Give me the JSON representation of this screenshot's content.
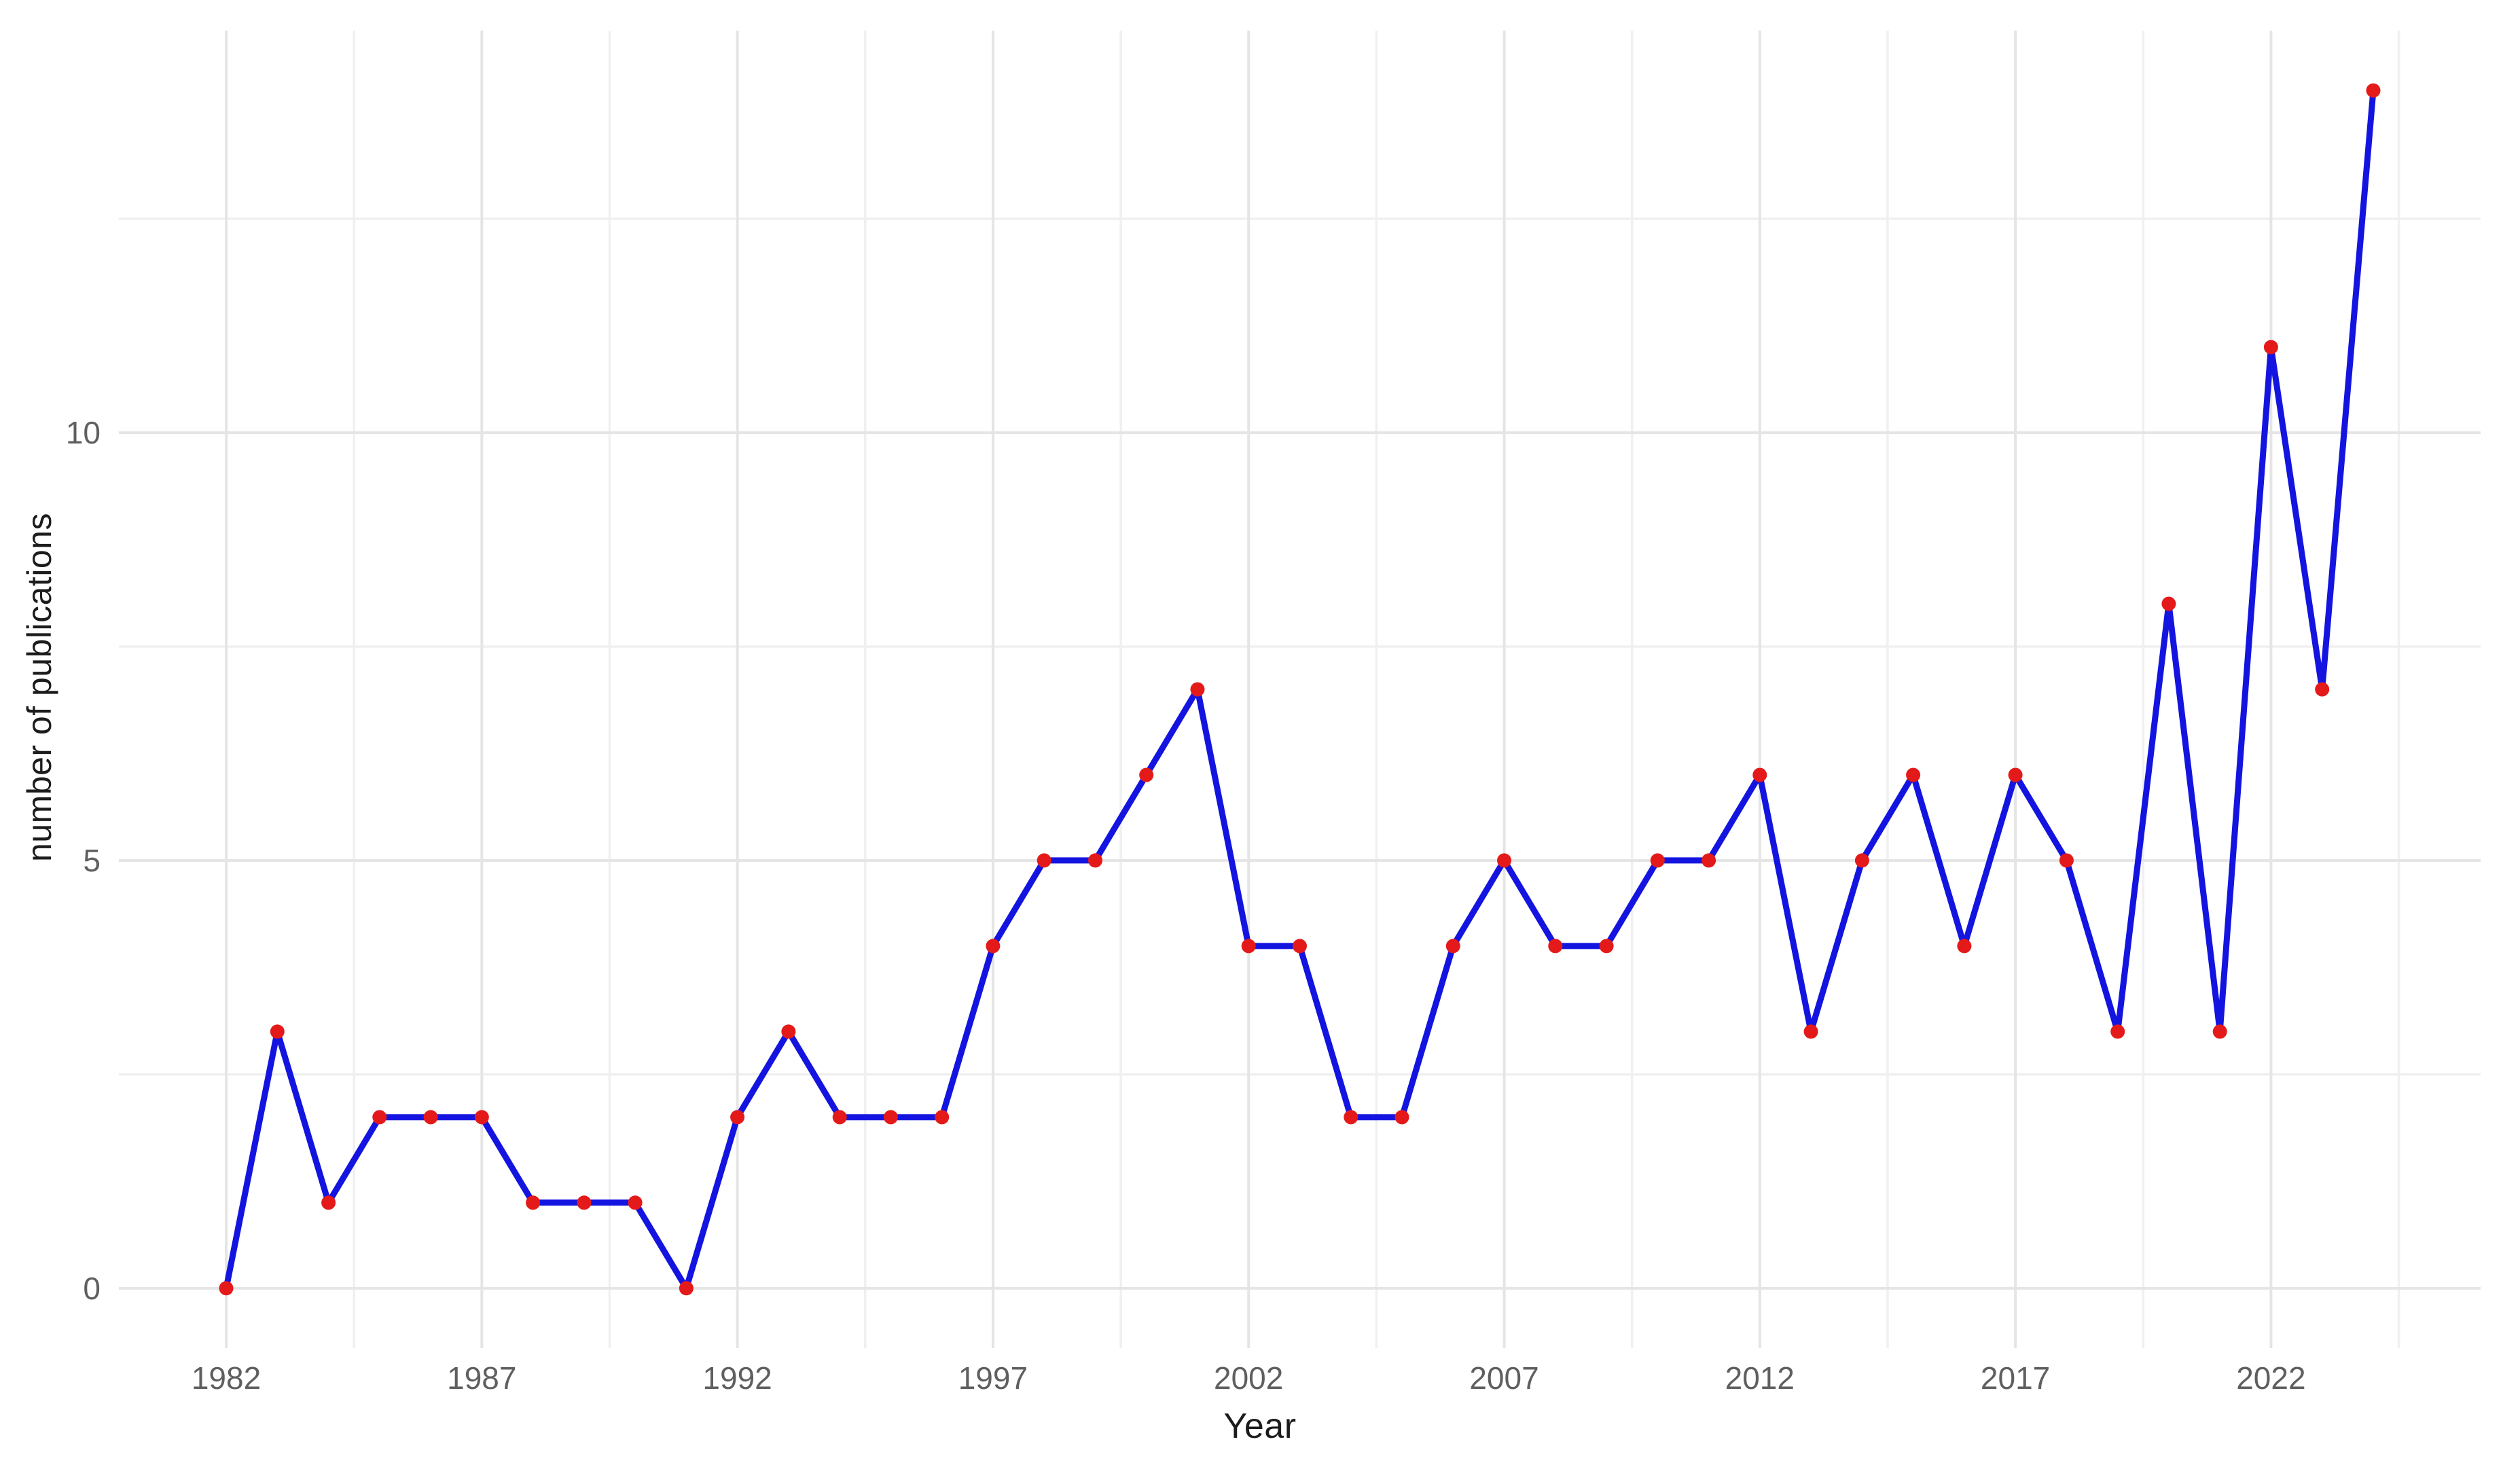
{
  "chart_data": {
    "type": "line",
    "title": "",
    "xlabel": "Year",
    "ylabel": "number of publications",
    "x": [
      1982,
      1983,
      1984,
      1985,
      1986,
      1987,
      1988,
      1989,
      1990,
      1991,
      1992,
      1993,
      1994,
      1995,
      1996,
      1997,
      1998,
      1999,
      2000,
      2001,
      2002,
      2003,
      2004,
      2005,
      2006,
      2007,
      2008,
      2009,
      2010,
      2011,
      2012,
      2013,
      2014,
      2015,
      2016,
      2017,
      2018,
      2019,
      2020,
      2021,
      2022,
      2023,
      2024
    ],
    "values": [
      0,
      3,
      1,
      2,
      2,
      2,
      1,
      1,
      1,
      0,
      2,
      3,
      2,
      2,
      2,
      4,
      5,
      5,
      6,
      7,
      4,
      4,
      2,
      2,
      4,
      5,
      4,
      4,
      5,
      5,
      6,
      3,
      5,
      6,
      4,
      6,
      5,
      3,
      8,
      3,
      11,
      7,
      14
    ],
    "x_tick_labels": [
      "1982",
      "1987",
      "1992",
      "1997",
      "2002",
      "2007",
      "2012",
      "2017",
      "2022"
    ],
    "x_tick_values": [
      1982,
      1987,
      1992,
      1997,
      2002,
      2007,
      2012,
      2017,
      2022
    ],
    "y_tick_labels": [
      "0",
      "5",
      "10"
    ],
    "y_tick_values": [
      0,
      5,
      10
    ],
    "xlim": [
      1979.9,
      2026.1
    ],
    "ylim": [
      -0.7,
      14.7
    ],
    "minor_step_x": 2.5,
    "minor_step_y": 2.5,
    "grid": "major-and-minor, no axis lines, no tick marks",
    "legend": "none",
    "colors": {
      "line": "#1414E0",
      "point": "#E41A1A",
      "grid_major": "#E5E5E5",
      "grid_minor": "#F0F0F0",
      "tick_label": "#5F5F5F",
      "axis_title": "#1C1C1C",
      "background": "#FFFFFF"
    }
  }
}
